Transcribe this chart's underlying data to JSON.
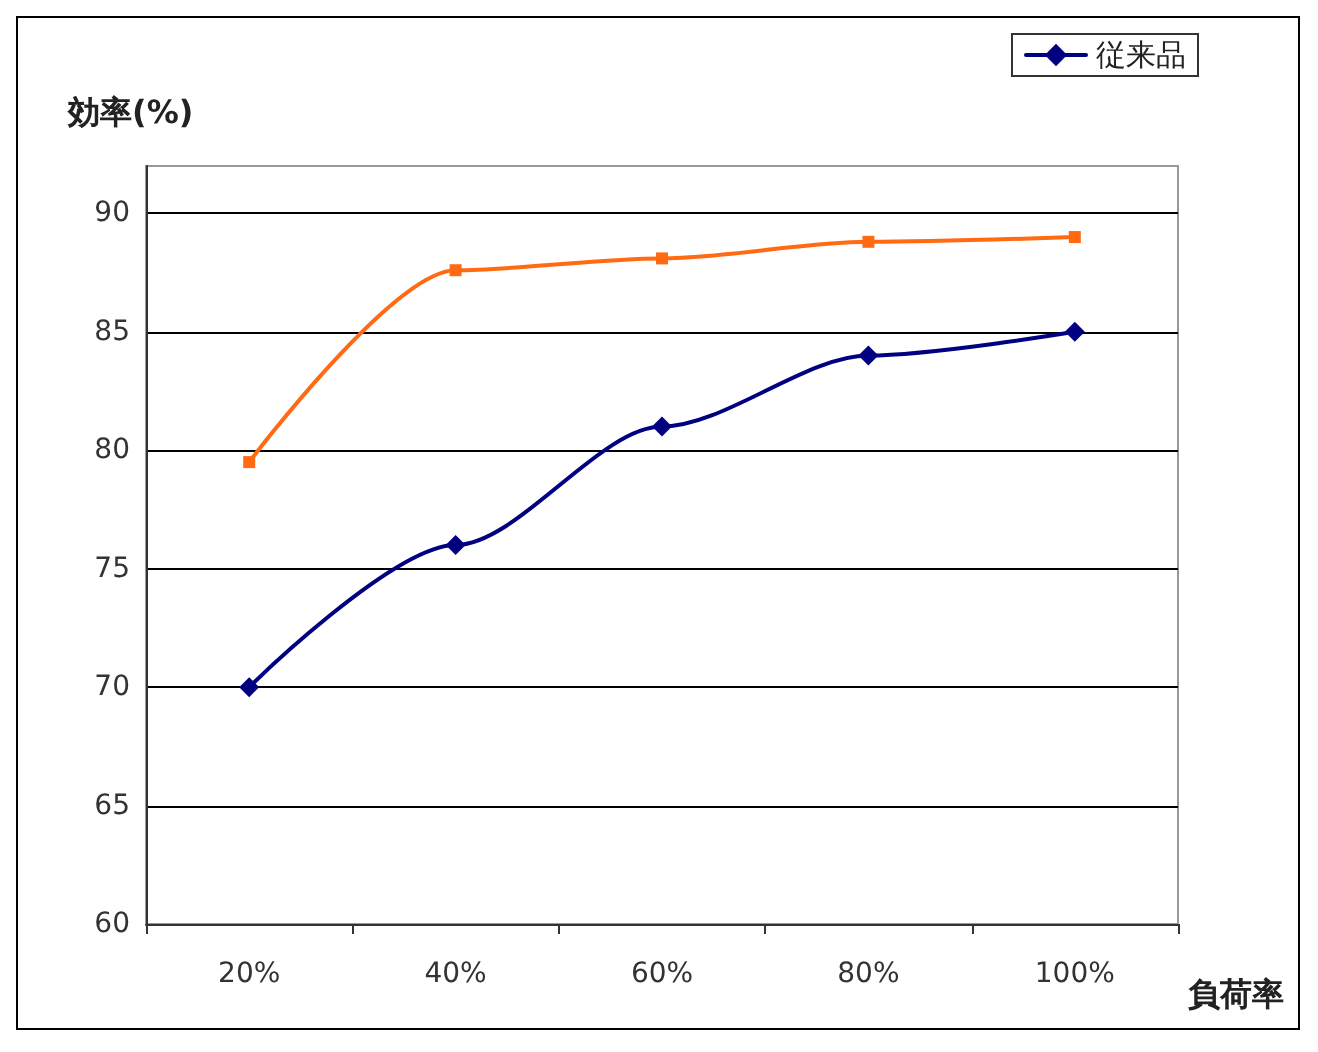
{
  "chart_data": {
    "type": "line",
    "ylabel": "効率(%)",
    "xlabel": "負荷率",
    "categories": [
      "20%",
      "40%",
      "60%",
      "80%",
      "100%"
    ],
    "series": [
      {
        "name": "従来品",
        "color": "#000080",
        "marker": "diamond",
        "values": [
          70,
          76,
          81,
          84,
          85
        ]
      },
      {
        "color": "#ff6a13",
        "marker": "square",
        "values": [
          79.5,
          87.6,
          88.1,
          88.8,
          89.0
        ]
      }
    ],
    "ylim": [
      60,
      92
    ],
    "yticks": [
      60,
      65,
      70,
      75,
      80,
      85,
      90
    ],
    "grid": "y",
    "legend": "top right",
    "line_style": "solid"
  }
}
